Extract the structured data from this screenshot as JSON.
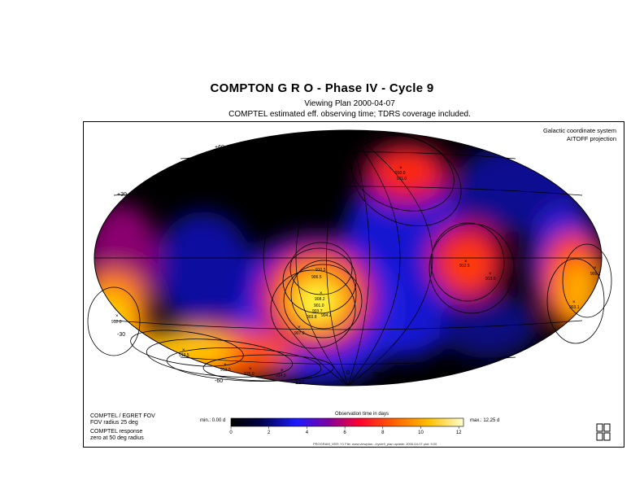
{
  "header": {
    "title": "COMPTON  G R O  - Phase IV - Cycle 9",
    "subtitle": "Viewing Plan 2000-04-07",
    "description": "COMPTEL estimated eff. observing time; TDRS coverage included."
  },
  "map": {
    "coordinate_system": "Galactic coordinate system",
    "projection": "AITOFF projection",
    "latitude_labels": [
      "+60",
      "+30",
      "-30",
      "-60"
    ],
    "longitude_labels": [
      "120",
      "0",
      "300",
      "240"
    ],
    "pointings": [
      "910.0",
      "911.0",
      "912.5",
      "913.0",
      "909.2",
      "903.1",
      "910.5",
      "906.5",
      "908.2",
      "901.0",
      "903.7",
      "903.8",
      "904.2",
      "907.0",
      "912.0",
      "913.5",
      "912.0",
      "915.0",
      "914.0"
    ]
  },
  "info": {
    "fov_line1": "COMPTEL / EGRET FOV",
    "fov_line2": "FOV radius 25 deg",
    "resp_line1": "COMPTEL response",
    "resp_line2": "zero at 50 deg radius"
  },
  "colorbar": {
    "title": "Observation time in days",
    "min_label": "min.: 0.00 d",
    "max_label": "max.: 12.25 d",
    "ticks": [
      "0",
      "2",
      "4",
      "6",
      "8",
      "10",
      "12"
    ],
    "min_value": 0,
    "max_value": 12.25
  },
  "footer": {
    "text": "PROGRAM_VER: Y1    File: www.viewplan.../cycle9_plan    update: 2000-04-07    plot: 9.00"
  },
  "logo": {
    "text": "max planck"
  }
}
